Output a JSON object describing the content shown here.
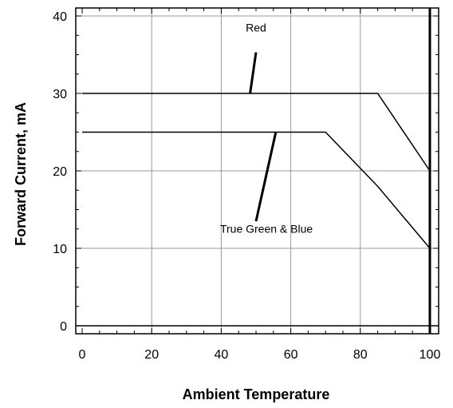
{
  "chart_data": {
    "type": "line",
    "title": "",
    "xlabel": "Ambient Temperature",
    "ylabel": "Forward Current, mA",
    "xlim": [
      0,
      100
    ],
    "ylim": [
      0,
      40
    ],
    "xticks": [
      0,
      20,
      40,
      60,
      80,
      100
    ],
    "yticks": [
      0,
      10,
      20,
      30,
      40
    ],
    "xtick_labels": [
      "0",
      "20",
      "40",
      "60",
      "80",
      "100"
    ],
    "ytick_labels": [
      "0",
      "10",
      "20",
      "30",
      "40"
    ],
    "grid": true,
    "legend": "none",
    "series": [
      {
        "label": "Red",
        "x": [
          0,
          85,
          100
        ],
        "y": [
          30,
          30,
          20
        ]
      },
      {
        "label": "True Green & Blue",
        "x": [
          0,
          70,
          85,
          100
        ],
        "y": [
          25,
          25,
          18,
          10
        ]
      }
    ],
    "annotations": [
      {
        "text": "Red",
        "series": 0,
        "text_at": [
          50,
          38
        ],
        "pointer_from": [
          50,
          35.3
        ],
        "pointer_to": [
          48.3,
          30
        ]
      },
      {
        "text": "True Green & Blue",
        "series": 1,
        "text_at": [
          53,
          12
        ],
        "pointer_from": [
          50,
          13.5
        ],
        "pointer_to": [
          55.7,
          25
        ]
      }
    ]
  }
}
